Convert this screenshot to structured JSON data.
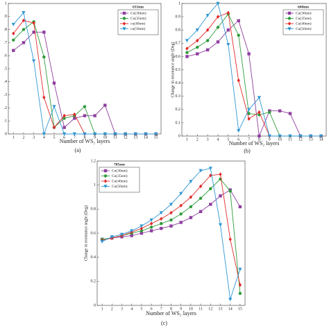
{
  "chart_data": [
    {
      "type": "line",
      "legend_title": "633nm",
      "caption": "(a)",
      "xlabel": "Number of WS₂ layers",
      "x": [
        1,
        2,
        3,
        4,
        5,
        6,
        7,
        8,
        9,
        10,
        11,
        12,
        13,
        14,
        15
      ],
      "xlim": [
        0.5,
        15.5
      ],
      "xticks": [
        1,
        2,
        3,
        4,
        5,
        6,
        7,
        8,
        9,
        10,
        11,
        12,
        13,
        14,
        15
      ],
      "ylim": [
        0,
        1
      ],
      "yticks": [
        0,
        {
          "value": 0.1,
          "label": ".1"
        },
        {
          "value": 0.2,
          "label": ".2"
        },
        {
          "value": 0.3,
          "label": ".3"
        },
        {
          "value": 0.4,
          "label": ".4"
        },
        {
          "value": 0.5,
          "label": ".5"
        },
        {
          "value": 0.6,
          "label": ".6"
        },
        {
          "value": 0.7,
          "label": ".7"
        },
        {
          "value": 0.8,
          "label": ".8"
        },
        {
          "value": 0.9,
          "label": ".9"
        },
        1
      ],
      "legend": "upper right",
      "series": [
        {
          "name": "Cu(30nm)",
          "color": "#8e3f9e",
          "marker": "square",
          "values": [
            0.64,
            0.7,
            0.78,
            0.78,
            0.39,
            0.05,
            0.12,
            0.14,
            0.14,
            0.22,
            0,
            0,
            0,
            0,
            0
          ]
        },
        {
          "name": "Cu(35nm)",
          "color": "#2e9b3a",
          "marker": "circle",
          "values": [
            0.72,
            0.8,
            0.86,
            0.59,
            0.05,
            0.12,
            0.14,
            0.21,
            0,
            0,
            0,
            0,
            0,
            0,
            0
          ]
        },
        {
          "name": "cu(40nm)",
          "color": "#e02a2a",
          "marker": "diamond",
          "values": [
            0.77,
            0.87,
            0.85,
            0.28,
            0.05,
            0.14,
            0.15,
            0,
            0,
            0,
            0,
            0,
            0,
            0,
            0
          ]
        },
        {
          "name": "cu(50nm)",
          "color": "#2f97d3",
          "marker": "triangle",
          "values": [
            0.84,
            0.93,
            0.56,
            0,
            0.21,
            0,
            0,
            0,
            0,
            0,
            0,
            0,
            0,
            0,
            0
          ]
        }
      ]
    },
    {
      "type": "line",
      "legend_title": "660nm",
      "caption": "(b)",
      "xlabel": "Number of WS₂ layers",
      "ylabel": "Change in resonance angle (Deg)",
      "x": [
        1,
        2,
        3,
        4,
        5,
        6,
        7,
        8,
        9,
        10,
        11,
        12,
        13,
        14
      ],
      "xlim": [
        0.5,
        14.5
      ],
      "xticks": [
        1,
        2,
        3,
        4,
        5,
        6,
        7,
        8,
        9,
        10,
        11,
        12,
        13,
        14
      ],
      "ylim": [
        0,
        1
      ],
      "yticks": [
        0,
        0.1,
        0.2,
        0.3,
        0.4,
        0.5,
        0.6,
        0.7,
        0.8,
        0.9,
        1
      ],
      "legend": "upper right",
      "series": [
        {
          "name": "Cu(30nm)",
          "color": "#8e3f9e",
          "marker": "square",
          "values": [
            0.6,
            0.62,
            0.65,
            0.71,
            0.8,
            0.87,
            0.62,
            0,
            0.19,
            0.19,
            0.17,
            0,
            0,
            0
          ]
        },
        {
          "name": "Cu(35nm)",
          "color": "#2e9b3a",
          "marker": "circle",
          "values": [
            0.63,
            0.67,
            0.72,
            0.82,
            0.92,
            0.76,
            0.17,
            0.16,
            0.18,
            0,
            0,
            0,
            0,
            0
          ]
        },
        {
          "name": "Cu(40nm)",
          "color": "#e02a2a",
          "marker": "diamond",
          "values": [
            0.66,
            0.72,
            0.8,
            0.9,
            0.93,
            0.42,
            0.13,
            0.18,
            0,
            0,
            0,
            0,
            0,
            0
          ]
        },
        {
          "name": "Cu(50nm)",
          "color": "#2f97d3",
          "marker": "triangle",
          "values": [
            0.72,
            0.8,
            0.91,
            1.0,
            0.69,
            0.04,
            0.2,
            0.29,
            0,
            0,
            0,
            0,
            0,
            0
          ]
        }
      ]
    },
    {
      "type": "line",
      "legend_title": "785nm",
      "caption": "(c)",
      "xlabel": "Number of WS₂ layers",
      "ylabel": "Change in resonance angle (Deg)",
      "x": [
        1,
        2,
        3,
        4,
        5,
        6,
        7,
        8,
        9,
        10,
        11,
        12,
        13,
        14,
        15
      ],
      "xlim": [
        0.5,
        15.5
      ],
      "xticks": [
        1,
        2,
        3,
        4,
        5,
        6,
        7,
        8,
        9,
        10,
        11,
        12,
        13,
        14,
        15
      ],
      "ylim": [
        0,
        1.2
      ],
      "yticks": [
        0,
        0.2,
        0.4,
        0.6,
        0.8,
        1,
        1.2
      ],
      "legend": "upper left",
      "series": [
        {
          "name": "Cu(30nm)",
          "color": "#8e3f9e",
          "marker": "square",
          "values": [
            0.55,
            0.56,
            0.57,
            0.58,
            0.6,
            0.62,
            0.64,
            0.66,
            0.69,
            0.73,
            0.78,
            0.84,
            0.91,
            0.96,
            0.82
          ]
        },
        {
          "name": "Cu(35nm)",
          "color": "#2e9b3a",
          "marker": "circle",
          "values": [
            0.55,
            0.56,
            0.58,
            0.6,
            0.62,
            0.65,
            0.68,
            0.71,
            0.76,
            0.82,
            0.89,
            0.97,
            1.05,
            0.95,
            0.1
          ]
        },
        {
          "name": "Cu(40nm)",
          "color": "#e02a2a",
          "marker": "diamond",
          "values": [
            0.54,
            0.56,
            0.58,
            0.61,
            0.64,
            0.68,
            0.72,
            0.77,
            0.83,
            0.9,
            0.99,
            1.08,
            1.09,
            0.55,
            0.17
          ]
        },
        {
          "name": "Cu(50nm)",
          "color": "#2f97d3",
          "marker": "triangle",
          "values": [
            0.53,
            0.57,
            0.59,
            0.62,
            0.66,
            0.71,
            0.77,
            0.84,
            0.93,
            1.03,
            1.12,
            1.14,
            0.67,
            0.05,
            0.3
          ]
        }
      ]
    }
  ]
}
